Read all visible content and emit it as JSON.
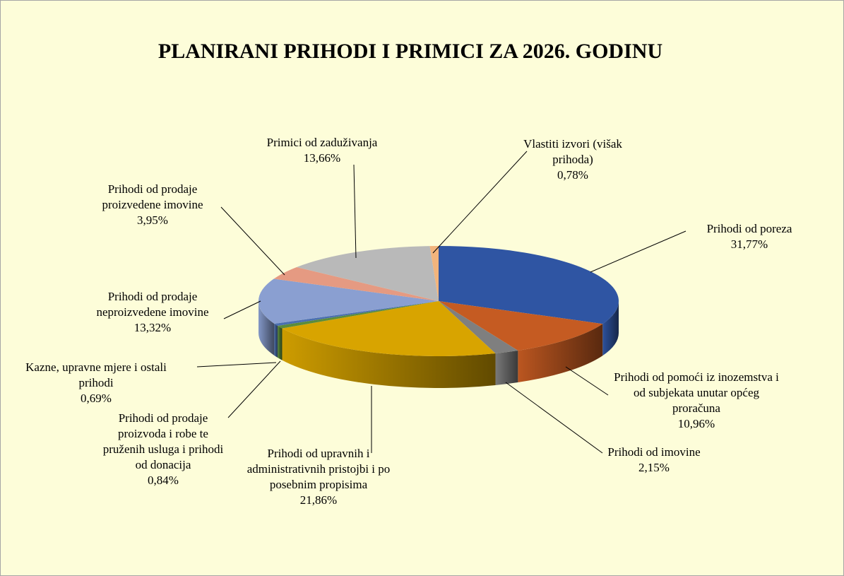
{
  "chart_data": {
    "type": "pie3d",
    "title": "PLANIRANI PRIHODI I PRIMICI ZA 2026. GODINU",
    "categories": [
      "Prihodi od poreza",
      "Prihodi od pomoći iz inozemstva i od subjekata unutar općeg proračuna",
      "Prihodi od imovine",
      "Prihodi od upravnih i administrativnih pristojbi i po posebnim propisima",
      "Prihodi od prodaje proizvoda i robe te pruženih usluga i prihodi od donacija",
      "Kazne, upravne mjere i ostali prihodi",
      "Prihodi od prodaje neproizvedene imovine",
      "Prihodi od prodaje proizvedene imovine",
      "Primici od zaduživanja",
      "Vlastiti izvori (višak prihoda)"
    ],
    "values": [
      31.77,
      10.96,
      2.15,
      21.86,
      0.84,
      0.69,
      13.32,
      3.95,
      13.66,
      0.78
    ],
    "value_labels": [
      "31,77%",
      "10,96%",
      "2,15%",
      "21,86%",
      "0,84%",
      "0,69%",
      "13,32%",
      "3,95%",
      "13,66%",
      "0,78%"
    ],
    "colors": [
      "#2f55a3",
      "#c55b22",
      "#7f7f7f",
      "#d8a400",
      "#5b8c3c",
      "#4a6fb0",
      "#8a9fd1",
      "#e59a82",
      "#b9b9b9",
      "#f2b47c"
    ]
  }
}
